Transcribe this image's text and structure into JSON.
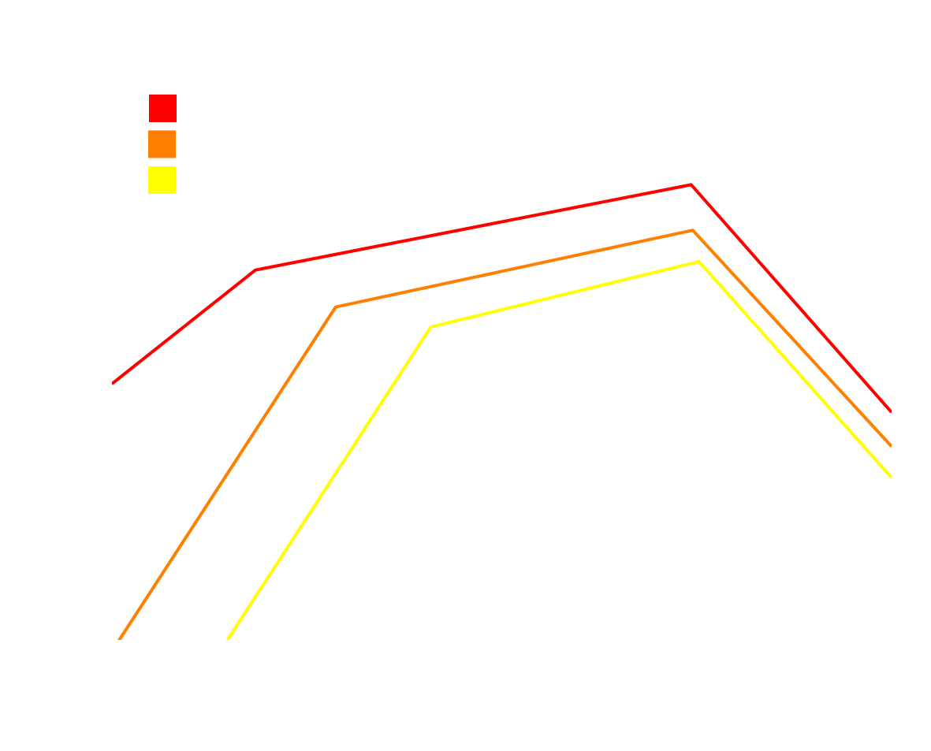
{
  "chart_data": {
    "type": "line",
    "title": "",
    "xlabel": "",
    "ylabel": "",
    "xlim": [
      0,
      100
    ],
    "ylim": [
      0,
      100
    ],
    "grid": false,
    "legend_position": "top-left",
    "series": [
      {
        "color": "#ff0000",
        "points": [
          {
            "x": 0.0,
            "y": 45.0
          },
          {
            "x": 18.4,
            "y": 65.0
          },
          {
            "x": 74.3,
            "y": 80.0
          },
          {
            "x": 100.0,
            "y": 40.0
          }
        ]
      },
      {
        "color": "#ff8000",
        "points": [
          {
            "x": 0.0,
            "y": -2.0
          },
          {
            "x": 28.7,
            "y": 58.5
          },
          {
            "x": 74.5,
            "y": 72.0
          },
          {
            "x": 100.0,
            "y": 34.0
          }
        ]
      },
      {
        "color": "#ffff00",
        "points": [
          {
            "x": 14.8,
            "y": 0.0
          },
          {
            "x": 40.9,
            "y": 55.0
          },
          {
            "x": 75.3,
            "y": 66.5
          },
          {
            "x": 100.0,
            "y": 28.5
          }
        ]
      }
    ]
  }
}
